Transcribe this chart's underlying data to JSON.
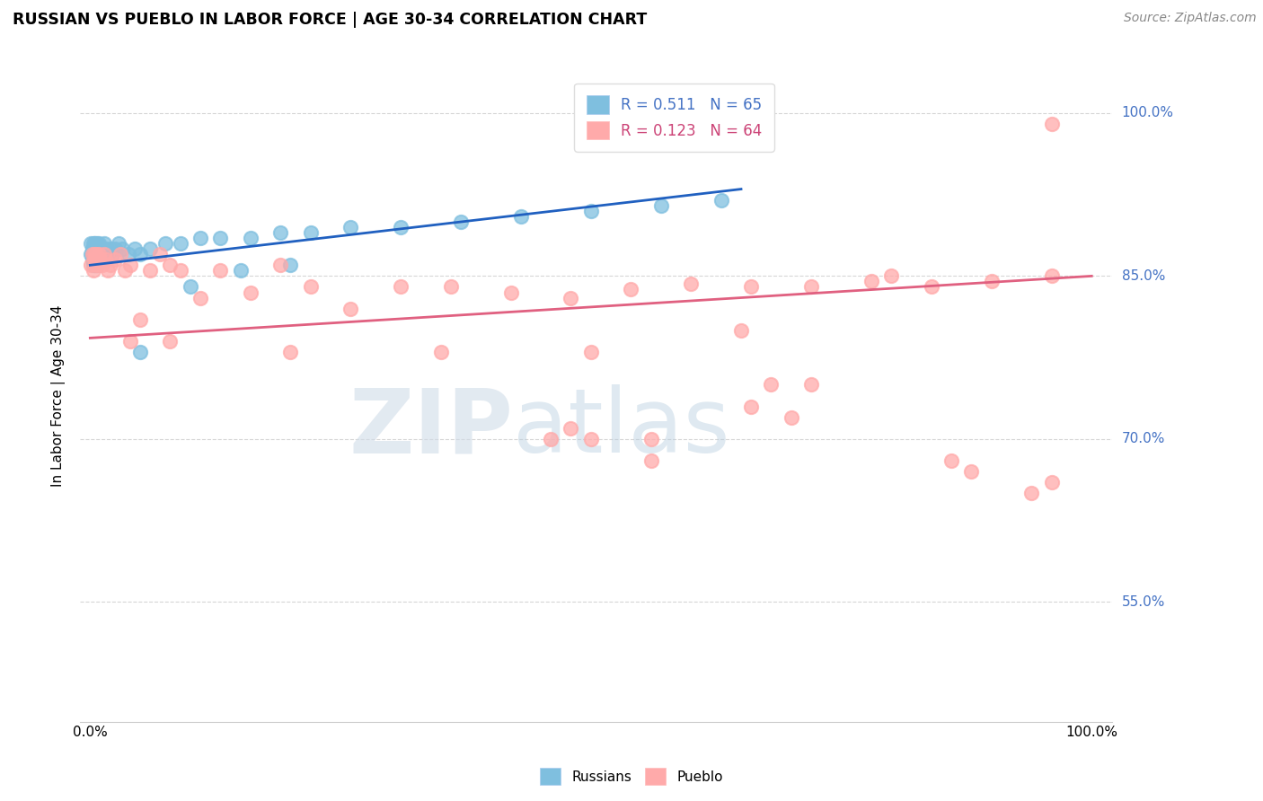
{
  "title": "RUSSIAN VS PUEBLO IN LABOR FORCE | AGE 30-34 CORRELATION CHART",
  "source": "Source: ZipAtlas.com",
  "ylabel": "In Labor Force | Age 30-34",
  "ytick_labels": [
    "55.0%",
    "70.0%",
    "85.0%",
    "100.0%"
  ],
  "ytick_values": [
    0.55,
    0.7,
    0.85,
    1.0
  ],
  "russian_color": "#7fbfdf",
  "pueblo_color": "#ffaaaa",
  "russian_line_color": "#2060c0",
  "pueblo_line_color": "#e06080",
  "watermark_zip": "ZIP",
  "watermark_atlas": "atlas",
  "russian_x": [
    0.001,
    0.001,
    0.002,
    0.002,
    0.002,
    0.003,
    0.003,
    0.003,
    0.003,
    0.004,
    0.004,
    0.004,
    0.005,
    0.005,
    0.005,
    0.005,
    0.006,
    0.006,
    0.006,
    0.007,
    0.007,
    0.007,
    0.007,
    0.008,
    0.008,
    0.008,
    0.009,
    0.009,
    0.01,
    0.01,
    0.01,
    0.011,
    0.012,
    0.013,
    0.014,
    0.015,
    0.016,
    0.018,
    0.02,
    0.022,
    0.025,
    0.028,
    0.032,
    0.038,
    0.045,
    0.05,
    0.06,
    0.075,
    0.09,
    0.11,
    0.13,
    0.16,
    0.19,
    0.22,
    0.26,
    0.31,
    0.37,
    0.43,
    0.5,
    0.57,
    0.63,
    0.05,
    0.1,
    0.15,
    0.2
  ],
  "russian_y": [
    0.87,
    0.88,
    0.87,
    0.875,
    0.865,
    0.87,
    0.88,
    0.875,
    0.86,
    0.87,
    0.88,
    0.865,
    0.87,
    0.875,
    0.88,
    0.86,
    0.87,
    0.875,
    0.865,
    0.87,
    0.875,
    0.88,
    0.86,
    0.87,
    0.875,
    0.865,
    0.87,
    0.88,
    0.875,
    0.87,
    0.865,
    0.87,
    0.875,
    0.87,
    0.88,
    0.87,
    0.875,
    0.87,
    0.875,
    0.87,
    0.875,
    0.88,
    0.875,
    0.87,
    0.875,
    0.87,
    0.875,
    0.88,
    0.88,
    0.885,
    0.885,
    0.885,
    0.89,
    0.89,
    0.895,
    0.895,
    0.9,
    0.905,
    0.91,
    0.915,
    0.92,
    0.78,
    0.84,
    0.855,
    0.86
  ],
  "pueblo_x": [
    0.001,
    0.002,
    0.003,
    0.004,
    0.004,
    0.005,
    0.006,
    0.007,
    0.008,
    0.009,
    0.01,
    0.012,
    0.014,
    0.016,
    0.018,
    0.02,
    0.025,
    0.03,
    0.035,
    0.04,
    0.05,
    0.06,
    0.07,
    0.08,
    0.09,
    0.11,
    0.13,
    0.16,
    0.19,
    0.22,
    0.26,
    0.31,
    0.36,
    0.42,
    0.48,
    0.54,
    0.6,
    0.66,
    0.72,
    0.78,
    0.84,
    0.9,
    0.96,
    0.04,
    0.08,
    0.2,
    0.35,
    0.5,
    0.65,
    0.8,
    0.66,
    0.7,
    0.68,
    0.72,
    0.88,
    0.86,
    0.94,
    0.96,
    0.46,
    0.5,
    0.48,
    0.56,
    0.56,
    0.96
  ],
  "pueblo_y": [
    0.86,
    0.87,
    0.855,
    0.865,
    0.87,
    0.86,
    0.87,
    0.865,
    0.86,
    0.87,
    0.865,
    0.86,
    0.87,
    0.865,
    0.855,
    0.86,
    0.865,
    0.87,
    0.855,
    0.86,
    0.81,
    0.855,
    0.87,
    0.86,
    0.855,
    0.83,
    0.855,
    0.835,
    0.86,
    0.84,
    0.82,
    0.84,
    0.84,
    0.835,
    0.83,
    0.838,
    0.843,
    0.84,
    0.84,
    0.845,
    0.84,
    0.845,
    0.85,
    0.79,
    0.79,
    0.78,
    0.78,
    0.78,
    0.8,
    0.85,
    0.73,
    0.72,
    0.75,
    0.75,
    0.67,
    0.68,
    0.65,
    0.66,
    0.7,
    0.7,
    0.71,
    0.7,
    0.68,
    0.99
  ],
  "ru_trend_x": [
    0.0,
    0.65
  ],
  "ru_trend_y": [
    0.86,
    0.93
  ],
  "pu_trend_x": [
    0.0,
    1.0
  ],
  "pu_trend_y": [
    0.793,
    0.85
  ],
  "xlim": [
    -0.01,
    1.02
  ],
  "ylim": [
    0.44,
    1.04
  ]
}
